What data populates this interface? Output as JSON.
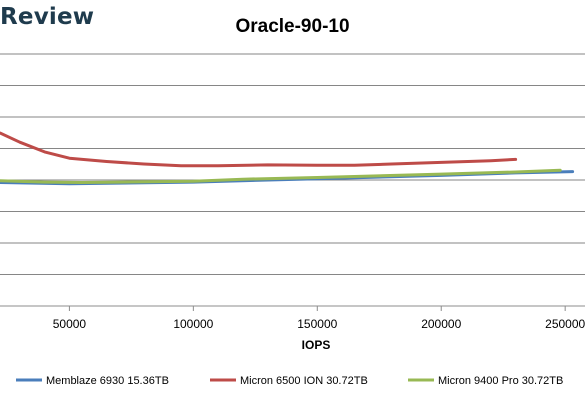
{
  "brand": {
    "text": "Review"
  },
  "chart_data": {
    "type": "line",
    "title": "Oracle-90-10",
    "xlabel": "IOPS",
    "ylabel": "",
    "xlim": [
      22000,
      258000
    ],
    "ylim": [
      0,
      60
    ],
    "x_ticks": [
      50000,
      100000,
      150000,
      200000,
      250000
    ],
    "x_tick_labels": [
      "50000",
      "100000",
      "150000",
      "200000",
      "250000"
    ],
    "y_gridlines": [
      0,
      7.5,
      15,
      22.5,
      30,
      37.5,
      45,
      52.5,
      60
    ],
    "y_tick_labels": [],
    "grid": true,
    "legend": "bottom",
    "series": [
      {
        "name": "Memblaze 6930 15.36TB",
        "color": "#4a7ebb",
        "points": [
          [
            22000,
            29.4
          ],
          [
            50000,
            29.1
          ],
          [
            100000,
            29.5
          ],
          [
            150000,
            30.3
          ],
          [
            200000,
            31.1
          ],
          [
            230000,
            31.7
          ],
          [
            253000,
            32.0
          ]
        ]
      },
      {
        "name": "Micron 6500 ION 30.72TB",
        "color": "#be4b48",
        "points": [
          [
            22000,
            41.2
          ],
          [
            30000,
            39.0
          ],
          [
            40000,
            36.7
          ],
          [
            50000,
            35.2
          ],
          [
            65000,
            34.4
          ],
          [
            80000,
            33.8
          ],
          [
            95000,
            33.4
          ],
          [
            110000,
            33.4
          ],
          [
            130000,
            33.6
          ],
          [
            150000,
            33.5
          ],
          [
            165000,
            33.5
          ],
          [
            180000,
            33.8
          ],
          [
            200000,
            34.2
          ],
          [
            220000,
            34.6
          ],
          [
            230000,
            34.9
          ]
        ]
      },
      {
        "name": "Micron 9400 Pro 30.72TB",
        "color": "#98b954",
        "points": [
          [
            22000,
            29.8
          ],
          [
            40000,
            29.5
          ],
          [
            55000,
            29.4
          ],
          [
            70000,
            29.5
          ],
          [
            100000,
            29.7
          ],
          [
            120000,
            30.2
          ],
          [
            150000,
            30.6
          ],
          [
            200000,
            31.4
          ],
          [
            230000,
            31.9
          ],
          [
            248000,
            32.3
          ]
        ]
      }
    ]
  }
}
